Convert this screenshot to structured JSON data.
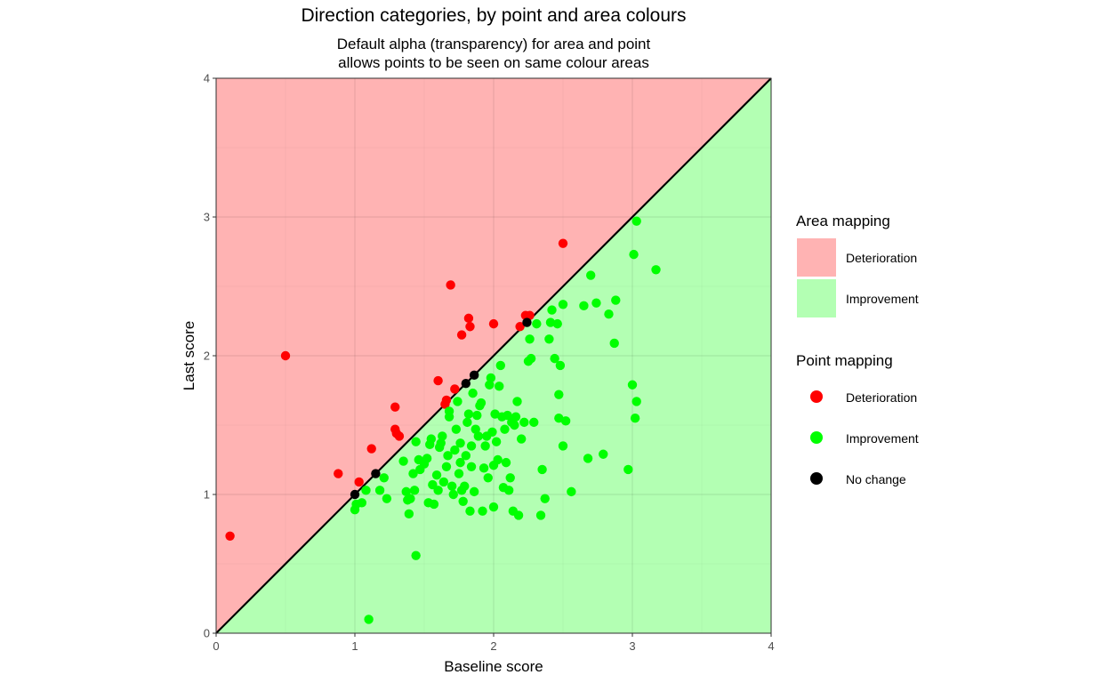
{
  "chart_data": {
    "type": "scatter",
    "title": "Direction categories, by point and area colours",
    "subtitle_lines": [
      "Default alpha (transparency) for area and point",
      "allows points to be seen on same colour areas"
    ],
    "xlabel": "Baseline score",
    "ylabel": "Last score",
    "xlim": [
      0,
      4
    ],
    "ylim": [
      0,
      4
    ],
    "x_ticks": [
      "0",
      "1",
      "2",
      "3",
      "4"
    ],
    "y_ticks": [
      "0",
      "1",
      "2",
      "3",
      "4"
    ],
    "grid": true,
    "reference_line": "y = x",
    "areas": [
      {
        "name": "Deterioration",
        "region": "above y = x",
        "color": "#ffb3b3"
      },
      {
        "name": "Improvement",
        "region": "below y = x",
        "color": "#b3ffb3"
      }
    ],
    "series": [
      {
        "name": "Deterioration",
        "color": "#ff0000",
        "points": [
          [
            0.1,
            0.7
          ],
          [
            0.5,
            2.0
          ],
          [
            0.88,
            1.15
          ],
          [
            1.03,
            1.09
          ],
          [
            1.12,
            1.33
          ],
          [
            1.29,
            1.47
          ],
          [
            1.29,
            1.63
          ],
          [
            1.32,
            1.42
          ],
          [
            1.3,
            1.44
          ],
          [
            1.6,
            1.82
          ],
          [
            1.65,
            1.65
          ],
          [
            1.66,
            1.68
          ],
          [
            1.69,
            2.51
          ],
          [
            1.72,
            1.76
          ],
          [
            1.77,
            2.15
          ],
          [
            1.82,
            2.27
          ],
          [
            1.83,
            2.21
          ],
          [
            2.0,
            2.23
          ],
          [
            2.19,
            2.21
          ],
          [
            2.23,
            2.29
          ],
          [
            2.26,
            2.29
          ],
          [
            2.5,
            2.81
          ]
        ]
      },
      {
        "name": "Improvement",
        "color": "#00ff00",
        "points": [
          [
            1.1,
            0.1
          ],
          [
            1.44,
            0.56
          ],
          [
            1.0,
            0.89
          ],
          [
            1.01,
            0.93
          ],
          [
            1.05,
            0.94
          ],
          [
            1.08,
            1.03
          ],
          [
            1.18,
            1.03
          ],
          [
            1.21,
            1.12
          ],
          [
            1.23,
            0.97
          ],
          [
            1.35,
            1.24
          ],
          [
            1.37,
            1.02
          ],
          [
            1.38,
            0.96
          ],
          [
            1.39,
            0.86
          ],
          [
            1.4,
            0.97
          ],
          [
            1.42,
            1.15
          ],
          [
            1.43,
            1.03
          ],
          [
            1.44,
            1.38
          ],
          [
            1.46,
            1.25
          ],
          [
            1.47,
            1.18
          ],
          [
            1.5,
            1.22
          ],
          [
            1.52,
            1.26
          ],
          [
            1.53,
            0.94
          ],
          [
            1.54,
            1.36
          ],
          [
            1.55,
            1.4
          ],
          [
            1.56,
            1.07
          ],
          [
            1.57,
            0.93
          ],
          [
            1.59,
            1.14
          ],
          [
            1.6,
            1.03
          ],
          [
            1.61,
            1.34
          ],
          [
            1.62,
            1.37
          ],
          [
            1.63,
            1.42
          ],
          [
            1.64,
            1.09
          ],
          [
            1.66,
            1.2
          ],
          [
            1.67,
            1.28
          ],
          [
            1.68,
            1.56
          ],
          [
            1.68,
            1.6
          ],
          [
            1.7,
            1.06
          ],
          [
            1.71,
            1.0
          ],
          [
            1.72,
            1.32
          ],
          [
            1.73,
            1.47
          ],
          [
            1.74,
            1.67
          ],
          [
            1.75,
            1.15
          ],
          [
            1.76,
            1.23
          ],
          [
            1.76,
            1.37
          ],
          [
            1.77,
            1.03
          ],
          [
            1.78,
            0.95
          ],
          [
            1.79,
            1.06
          ],
          [
            1.8,
            1.28
          ],
          [
            1.81,
            1.52
          ],
          [
            1.82,
            1.58
          ],
          [
            1.83,
            0.88
          ],
          [
            1.84,
            1.2
          ],
          [
            1.84,
            1.35
          ],
          [
            1.85,
            1.73
          ],
          [
            1.86,
            1.02
          ],
          [
            1.87,
            1.47
          ],
          [
            1.88,
            1.57
          ],
          [
            1.89,
            1.42
          ],
          [
            1.9,
            1.64
          ],
          [
            1.91,
            1.66
          ],
          [
            1.92,
            0.88
          ],
          [
            1.93,
            1.19
          ],
          [
            1.94,
            1.35
          ],
          [
            1.95,
            1.42
          ],
          [
            1.96,
            1.12
          ],
          [
            1.97,
            1.79
          ],
          [
            1.98,
            1.84
          ],
          [
            1.99,
            1.45
          ],
          [
            2.0,
            1.21
          ],
          [
            2.0,
            0.91
          ],
          [
            2.01,
            1.58
          ],
          [
            2.02,
            1.38
          ],
          [
            2.03,
            1.25
          ],
          [
            2.04,
            1.78
          ],
          [
            2.05,
            1.93
          ],
          [
            2.06,
            1.56
          ],
          [
            2.07,
            1.05
          ],
          [
            2.08,
            1.47
          ],
          [
            2.09,
            1.23
          ],
          [
            2.1,
            1.57
          ],
          [
            2.11,
            1.03
          ],
          [
            2.12,
            1.12
          ],
          [
            2.13,
            1.52
          ],
          [
            2.14,
            0.88
          ],
          [
            2.15,
            1.5
          ],
          [
            2.16,
            1.56
          ],
          [
            2.17,
            1.67
          ],
          [
            2.18,
            0.85
          ],
          [
            2.2,
            1.4
          ],
          [
            2.22,
            1.52
          ],
          [
            2.25,
            1.96
          ],
          [
            2.26,
            2.12
          ],
          [
            2.27,
            1.98
          ],
          [
            2.29,
            1.52
          ],
          [
            2.31,
            2.23
          ],
          [
            2.34,
            0.85
          ],
          [
            2.35,
            1.18
          ],
          [
            2.37,
            0.97
          ],
          [
            2.4,
            2.12
          ],
          [
            2.41,
            2.24
          ],
          [
            2.42,
            2.33
          ],
          [
            2.44,
            1.98
          ],
          [
            2.46,
            2.23
          ],
          [
            2.47,
            1.55
          ],
          [
            2.47,
            1.72
          ],
          [
            2.48,
            1.93
          ],
          [
            2.5,
            2.37
          ],
          [
            2.5,
            1.35
          ],
          [
            2.52,
            1.53
          ],
          [
            2.56,
            1.02
          ],
          [
            2.65,
            2.36
          ],
          [
            2.68,
            1.26
          ],
          [
            2.7,
            2.58
          ],
          [
            2.74,
            2.38
          ],
          [
            2.79,
            1.29
          ],
          [
            2.83,
            2.3
          ],
          [
            2.87,
            2.09
          ],
          [
            2.88,
            2.4
          ],
          [
            2.97,
            1.18
          ],
          [
            3.0,
            1.79
          ],
          [
            3.01,
            2.73
          ],
          [
            3.02,
            1.55
          ],
          [
            3.03,
            1.67
          ],
          [
            3.03,
            2.97
          ],
          [
            3.17,
            2.62
          ]
        ]
      },
      {
        "name": "No change",
        "color": "#000000",
        "points": [
          [
            1.0,
            1.0
          ],
          [
            1.15,
            1.15
          ],
          [
            1.8,
            1.8
          ],
          [
            1.86,
            1.86
          ],
          [
            2.24,
            2.24
          ]
        ]
      }
    ]
  },
  "legend": {
    "area_title": "Area mapping",
    "area_items": [
      {
        "label": "Deterioration",
        "color": "#ffb3b3"
      },
      {
        "label": "Improvement",
        "color": "#b3ffb3"
      }
    ],
    "point_title": "Point mapping",
    "point_items": [
      {
        "label": "Deterioration",
        "color": "#ff0000"
      },
      {
        "label": "Improvement",
        "color": "#00ff00"
      },
      {
        "label": "No change",
        "color": "#000000"
      }
    ]
  }
}
